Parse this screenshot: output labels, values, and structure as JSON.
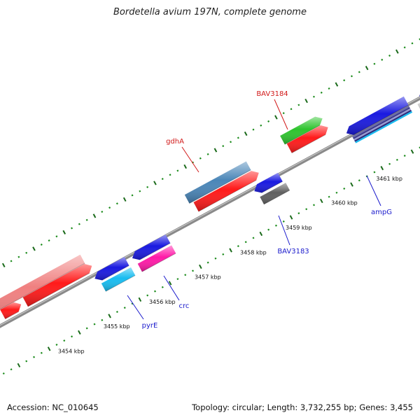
{
  "title": "Bordetella avium 197N, complete genome",
  "accession": "Accession: NC_010645",
  "summary": "Topology: circular; Length: 3,732,255 bp; Genes: 3,455",
  "colors": {
    "backbone": "#8a8a8a",
    "minor_tick": "#1a8a1a",
    "major_tick": "#1a6a1a",
    "forward_label": "#d11a1a",
    "reverse_label": "#1a1acc"
  },
  "ticks": {
    "labels": [
      "3454 kbp",
      "3455 kbp",
      "3456 kbp",
      "3457 kbp",
      "3458 kbp",
      "3459 kbp",
      "3460 kbp",
      "3461 kbp"
    ]
  },
  "features": [
    {
      "name": "salmon-feature",
      "color": "#f08080",
      "track": "forward-outer"
    },
    {
      "name": "red-feature-left-a",
      "color": "#ff1a1a",
      "track": "forward-inner"
    },
    {
      "name": "red-feature-left-b",
      "color": "#ff1a1a",
      "track": "forward-inner"
    },
    {
      "name": "gdhA",
      "color": "#4a86b8",
      "track": "forward-outer"
    },
    {
      "name": "red-feature-gdhA",
      "color": "#ff1a1a",
      "track": "forward-inner"
    },
    {
      "name": "BAV3184",
      "color": "#2ec42e",
      "track": "forward-outer"
    },
    {
      "name": "red-feature-BAV3184",
      "color": "#ff1a1a",
      "track": "forward-inner"
    },
    {
      "name": "ampG",
      "color": "#1a1ae0",
      "track": "reverse"
    },
    {
      "name": "blue-feature-right",
      "color": "#1a1ae0",
      "track": "reverse"
    },
    {
      "name": "white-feature-right",
      "color": "#e8e8e8",
      "track": "reverse"
    },
    {
      "name": "pyrE",
      "color": "#18bcf0",
      "track": "reverse"
    },
    {
      "name": "crc",
      "color": "#ff1aa8",
      "track": "reverse"
    },
    {
      "name": "BAV3183",
      "color": "#606060",
      "track": "reverse"
    }
  ],
  "gene_labels": [
    {
      "key": "gdhA",
      "text": "gdhA",
      "strand": "forward"
    },
    {
      "key": "BAV3184",
      "text": "BAV3184",
      "strand": "forward"
    },
    {
      "key": "BAV3183",
      "text": "BAV3183",
      "strand": "reverse"
    },
    {
      "key": "ampG",
      "text": "ampG",
      "strand": "reverse"
    },
    {
      "key": "crc",
      "text": "crc",
      "strand": "reverse"
    },
    {
      "key": "pyrE",
      "text": "pyrE",
      "strand": "reverse"
    }
  ]
}
